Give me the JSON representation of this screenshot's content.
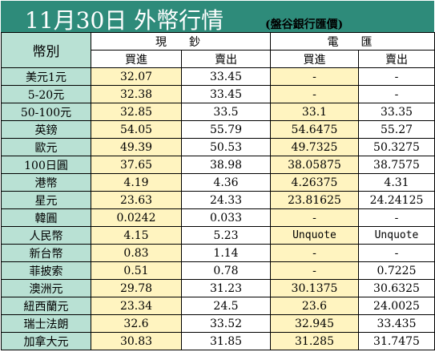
{
  "header": {
    "title": "11月30日 外幣行情",
    "subtitle": "(盤谷銀行匯價)"
  },
  "table": {
    "corner_label": "幣別",
    "groups": [
      "現　鈔",
      "電　匯"
    ],
    "subheaders": [
      "買進",
      "賣出",
      "買進",
      "賣出"
    ],
    "rows": [
      {
        "name": "美元1元",
        "values": [
          "32.07",
          "33.45",
          "-",
          "-"
        ]
      },
      {
        "name": "5-20元",
        "values": [
          "32.38",
          "33.45",
          "-",
          "-"
        ]
      },
      {
        "name": "50-100元",
        "values": [
          "32.85",
          "33.5",
          "33.1",
          "33.35"
        ]
      },
      {
        "name": "英鎊",
        "values": [
          "54.05",
          "55.79",
          "54.6475",
          "55.27"
        ]
      },
      {
        "name": "歐元",
        "values": [
          "49.39",
          "50.53",
          "49.7325",
          "50.3275"
        ]
      },
      {
        "name": "100日圓",
        "values": [
          "37.65",
          "38.98",
          "38.05875",
          "38.7575"
        ]
      },
      {
        "name": "港幣",
        "values": [
          "4.19",
          "4.36",
          "4.26375",
          "4.31"
        ]
      },
      {
        "name": "星元",
        "values": [
          "23.63",
          "24.33",
          "23.81625",
          "24.24125"
        ]
      },
      {
        "name": "韓圓",
        "values": [
          "0.0242",
          "0.033",
          "-",
          "-"
        ]
      },
      {
        "name": "人民幣",
        "values": [
          "4.15",
          "5.23",
          "Unquote",
          "Unquote"
        ]
      },
      {
        "name": "新台幣",
        "values": [
          "0.83",
          "1.14",
          "-",
          "-"
        ]
      },
      {
        "name": "菲披索",
        "values": [
          "0.51",
          "0.78",
          "-",
          "0.7225"
        ]
      },
      {
        "name": "澳洲元",
        "values": [
          "29.78",
          "31.23",
          "30.1375",
          "30.6325"
        ]
      },
      {
        "name": "紐西蘭元",
        "values": [
          "23.34",
          "24.5",
          "23.6",
          "24.0025"
        ]
      },
      {
        "name": "瑞士法朗",
        "values": [
          "32.6",
          "33.52",
          "32.945",
          "33.435"
        ]
      },
      {
        "name": "加拿大元",
        "values": [
          "30.83",
          "31.85",
          "31.285",
          "31.7475"
        ]
      }
    ]
  },
  "colors": {
    "header_bg": "#2e8b7a",
    "name_col_bg": "#b9e1d4",
    "left_col_bg": "#fff4c0",
    "right_col_bg": "#ffffff"
  }
}
